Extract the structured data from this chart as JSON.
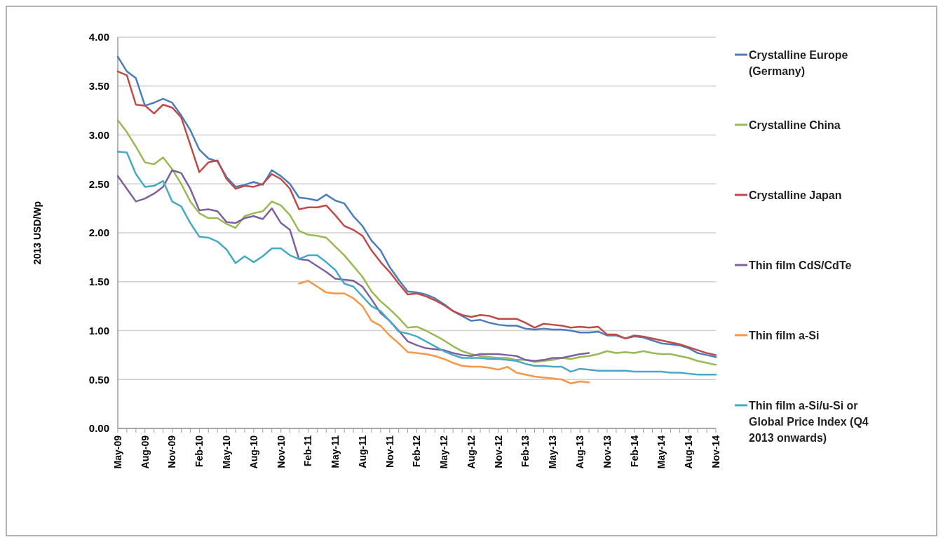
{
  "chart_data": {
    "type": "line",
    "ylabel": "2013 USD/Wp",
    "categories": [
      "May-09",
      null,
      null,
      "Aug-09",
      null,
      null,
      "Nov-09",
      null,
      null,
      "Feb-10",
      null,
      null,
      "May-10",
      null,
      null,
      "Aug-10",
      null,
      null,
      "Nov-10",
      null,
      null,
      "Feb-11",
      null,
      null,
      "May-11",
      null,
      null,
      "Aug-11",
      null,
      null,
      "Nov-11",
      null,
      null,
      "Feb-12",
      null,
      null,
      "May-12",
      null,
      null,
      "Aug-12",
      null,
      null,
      "Nov-12",
      null,
      null,
      "Feb-13",
      null,
      null,
      "May-13",
      null,
      null,
      "Aug-13",
      null,
      null,
      "Nov-13",
      null,
      null,
      "Feb-14",
      null,
      null,
      "May-14",
      null,
      null,
      "Aug-14",
      null,
      null,
      "Nov-14"
    ],
    "ylim": [
      0,
      4
    ],
    "yticks": [
      {
        "value": 0,
        "label": "0.00"
      },
      {
        "value": 0.5,
        "label": "0.50"
      },
      {
        "value": 1,
        "label": "1.00"
      },
      {
        "value": 1.5,
        "label": "1.50"
      },
      {
        "value": 2,
        "label": "2.00"
      },
      {
        "value": 2.5,
        "label": "2.50"
      },
      {
        "value": 3,
        "label": "3.00"
      },
      {
        "value": 3.5,
        "label": "3.50"
      },
      {
        "value": 4,
        "label": "4.00"
      }
    ],
    "grid": "y",
    "legend": "right",
    "marker": "none",
    "line_style": "solid",
    "series": [
      {
        "name": "Crystalline Europe (Germany)",
        "color": "#4a7ebb",
        "values": [
          3.8,
          3.65,
          3.58,
          3.3,
          3.33,
          3.37,
          3.33,
          3.2,
          3.05,
          2.85,
          2.76,
          2.73,
          2.57,
          2.47,
          2.49,
          2.52,
          2.49,
          2.64,
          2.58,
          2.5,
          2.36,
          2.35,
          2.33,
          2.39,
          2.33,
          2.3,
          2.17,
          2.07,
          1.92,
          1.82,
          1.65,
          1.52,
          1.4,
          1.39,
          1.37,
          1.33,
          1.27,
          1.2,
          1.15,
          1.1,
          1.11,
          1.08,
          1.06,
          1.05,
          1.05,
          1.02,
          1.01,
          1.02,
          1.01,
          1.01,
          1.0,
          0.98,
          0.98,
          0.99,
          0.95,
          0.95,
          0.92,
          0.94,
          0.93,
          0.9,
          0.87,
          0.86,
          0.85,
          0.82,
          0.77,
          0.75,
          0.73
        ]
      },
      {
        "name": "Crystalline China",
        "color": "#98b954",
        "values": [
          3.15,
          3.03,
          2.88,
          2.72,
          2.7,
          2.77,
          2.65,
          2.5,
          2.32,
          2.2,
          2.15,
          2.15,
          2.09,
          2.05,
          2.17,
          2.2,
          2.22,
          2.32,
          2.28,
          2.18,
          2.02,
          1.98,
          1.97,
          1.95,
          1.86,
          1.77,
          1.66,
          1.55,
          1.4,
          1.3,
          1.22,
          1.13,
          1.03,
          1.04,
          1.0,
          0.95,
          0.9,
          0.84,
          0.79,
          0.76,
          0.74,
          0.73,
          0.72,
          0.72,
          0.7,
          0.7,
          0.68,
          0.69,
          0.7,
          0.72,
          0.71,
          0.73,
          0.74,
          0.76,
          0.79,
          0.77,
          0.78,
          0.77,
          0.79,
          0.77,
          0.76,
          0.76,
          0.74,
          0.72,
          0.69,
          0.67,
          0.65
        ]
      },
      {
        "name": "Crystalline Japan",
        "color": "#be4b48",
        "values": [
          3.65,
          3.61,
          3.31,
          3.3,
          3.22,
          3.31,
          3.28,
          3.18,
          2.9,
          2.62,
          2.72,
          2.74,
          2.55,
          2.45,
          2.48,
          2.47,
          2.5,
          2.6,
          2.55,
          2.45,
          2.24,
          2.26,
          2.26,
          2.28,
          2.18,
          2.07,
          2.03,
          1.97,
          1.82,
          1.7,
          1.6,
          1.48,
          1.37,
          1.38,
          1.35,
          1.31,
          1.26,
          1.2,
          1.16,
          1.14,
          1.16,
          1.15,
          1.12,
          1.12,
          1.12,
          1.08,
          1.03,
          1.07,
          1.06,
          1.05,
          1.03,
          1.04,
          1.03,
          1.04,
          0.96,
          0.96,
          0.92,
          0.95,
          0.94,
          0.92,
          0.9,
          0.88,
          0.86,
          0.83,
          0.8,
          0.77,
          0.75
        ]
      },
      {
        "name": "Thin film CdS/CdTe",
        "color": "#7d60a0",
        "values": [
          2.58,
          2.45,
          2.32,
          2.35,
          2.4,
          2.47,
          2.64,
          2.61,
          2.45,
          2.23,
          2.24,
          2.22,
          2.11,
          2.1,
          2.15,
          2.17,
          2.14,
          2.25,
          2.1,
          2.03,
          1.73,
          1.72,
          1.66,
          1.6,
          1.53,
          1.52,
          1.51,
          1.45,
          1.32,
          1.18,
          1.1,
          1.0,
          0.89,
          0.85,
          0.82,
          0.81,
          0.8,
          0.77,
          0.75,
          0.74,
          0.76,
          0.76,
          0.76,
          0.75,
          0.74,
          0.7,
          0.69,
          0.7,
          0.72,
          0.72,
          0.74,
          0.76,
          0.77,
          null,
          null,
          null,
          null,
          null,
          null,
          null,
          null,
          null,
          null,
          null,
          null,
          null,
          null
        ]
      },
      {
        "name": "Thin film a-Si",
        "color": "#f79646",
        "values": [
          null,
          null,
          null,
          null,
          null,
          null,
          null,
          null,
          null,
          null,
          null,
          null,
          null,
          null,
          null,
          null,
          null,
          null,
          null,
          null,
          1.48,
          1.51,
          1.45,
          1.39,
          1.38,
          1.38,
          1.33,
          1.25,
          1.1,
          1.05,
          0.95,
          0.87,
          0.78,
          0.77,
          0.76,
          0.74,
          0.71,
          0.67,
          0.64,
          0.63,
          0.63,
          0.62,
          0.6,
          0.63,
          0.57,
          0.55,
          0.53,
          0.52,
          0.51,
          0.5,
          0.46,
          0.48,
          0.47,
          null,
          null,
          null,
          null,
          null,
          null,
          null,
          null,
          null,
          null,
          null,
          null,
          null,
          null
        ]
      },
      {
        "name": "Thin film a-Si/u-Si or Global Price Index (Q4 2013 onwards)",
        "color": "#46aac5",
        "values": [
          2.83,
          2.82,
          2.6,
          2.47,
          2.48,
          2.53,
          2.32,
          2.27,
          2.1,
          1.96,
          1.95,
          1.91,
          1.83,
          1.69,
          1.76,
          1.7,
          1.76,
          1.84,
          1.84,
          1.77,
          1.73,
          1.77,
          1.77,
          1.7,
          1.62,
          1.48,
          1.45,
          1.35,
          1.25,
          1.2,
          1.1,
          0.99,
          0.97,
          0.94,
          0.89,
          0.84,
          0.79,
          0.75,
          0.72,
          0.72,
          0.72,
          0.71,
          0.71,
          0.7,
          0.69,
          0.66,
          0.64,
          0.64,
          0.63,
          0.63,
          0.58,
          0.61,
          0.6,
          0.59,
          0.59,
          0.59,
          0.59,
          0.58,
          0.58,
          0.58,
          0.58,
          0.57,
          0.57,
          0.56,
          0.55,
          0.55,
          0.55
        ]
      }
    ]
  }
}
